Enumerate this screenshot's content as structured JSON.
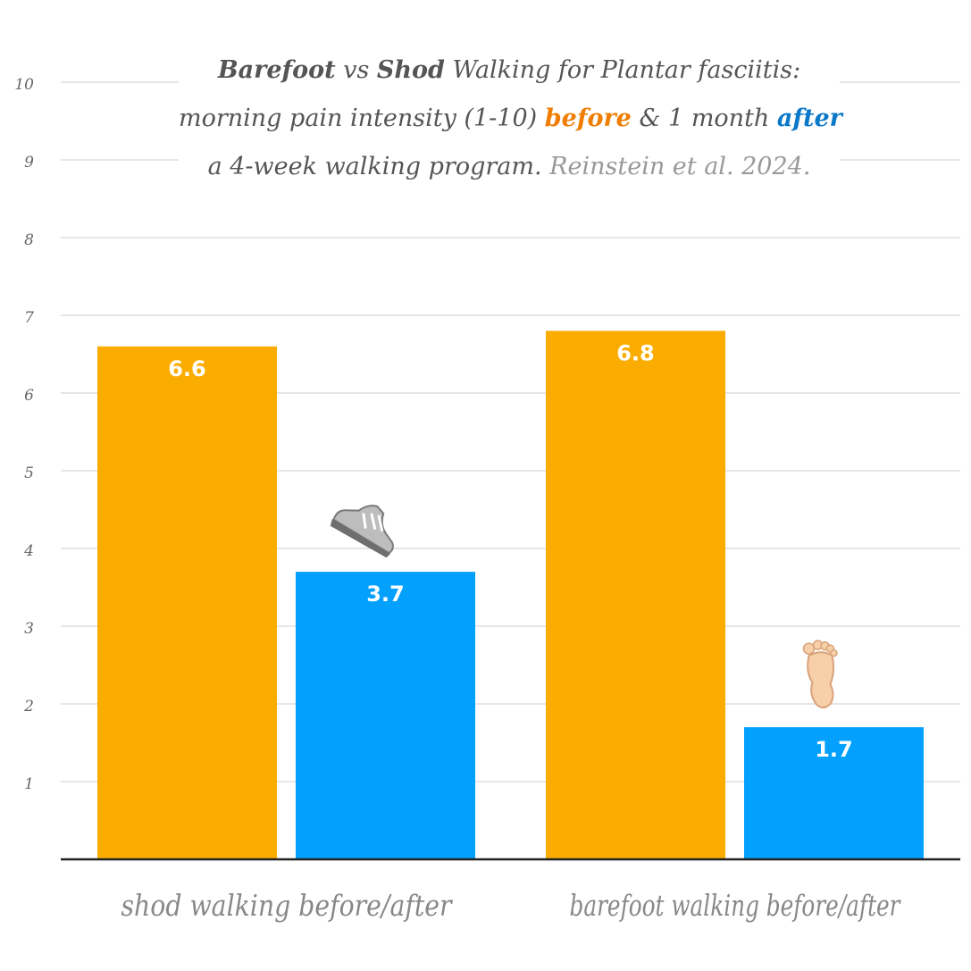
{
  "chart_data": {
    "type": "bar",
    "title": {
      "line1": {
        "a": "Barefoot",
        "b": " vs ",
        "c": "Shod",
        "d": " Walking for Plantar fasciitis:"
      },
      "line2": {
        "a": "morning pain intensity (1-10) ",
        "b": "before",
        "c": " & 1 month ",
        "d": "after"
      },
      "line3": {
        "a": "a 4-week walking program. ",
        "b": "Reinstein et al. 2024."
      }
    },
    "categories": [
      "shod walking before/after",
      "barefoot walking before/after"
    ],
    "series": [
      {
        "name": "before",
        "color": "#FBAC00",
        "values": [
          6.6,
          6.8
        ],
        "labels": [
          "6.6",
          "6.8"
        ]
      },
      {
        "name": "after",
        "color": "#04A0FE",
        "values": [
          3.7,
          1.7
        ],
        "labels": [
          "3.7",
          "1.7"
        ]
      }
    ],
    "annotations": [
      {
        "category": 0,
        "series": 1,
        "icon": "sneaker-icon"
      },
      {
        "category": 1,
        "series": 1,
        "icon": "foot-icon"
      }
    ],
    "ylim": [
      0,
      10
    ],
    "yticks": [
      1,
      2,
      3,
      4,
      5,
      6,
      7,
      8,
      9,
      10
    ],
    "xlabel": "",
    "ylabel": "",
    "grid": true,
    "legend": "none"
  }
}
